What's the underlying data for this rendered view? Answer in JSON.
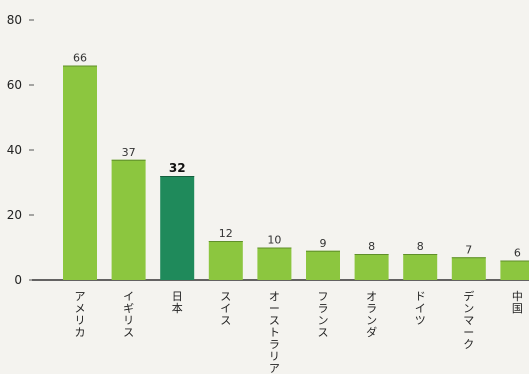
{
  "chart_data": {
    "type": "bar",
    "categories": [
      "アメリカ",
      "イギリス",
      "日本",
      "スイス",
      "オーストラリア",
      "フランス",
      "オランダ",
      "ドイツ",
      "デンマーク",
      "中国"
    ],
    "values": [
      66,
      37,
      32,
      12,
      10,
      9,
      8,
      8,
      7,
      6
    ],
    "highlight": "日本",
    "ylim": [
      0,
      80
    ],
    "yticks": [
      0,
      20,
      40,
      60,
      80
    ],
    "grid": false,
    "colors": {
      "bar": "#8cc63f",
      "highlight": "#1f8a5b",
      "axis": "#333333"
    }
  }
}
